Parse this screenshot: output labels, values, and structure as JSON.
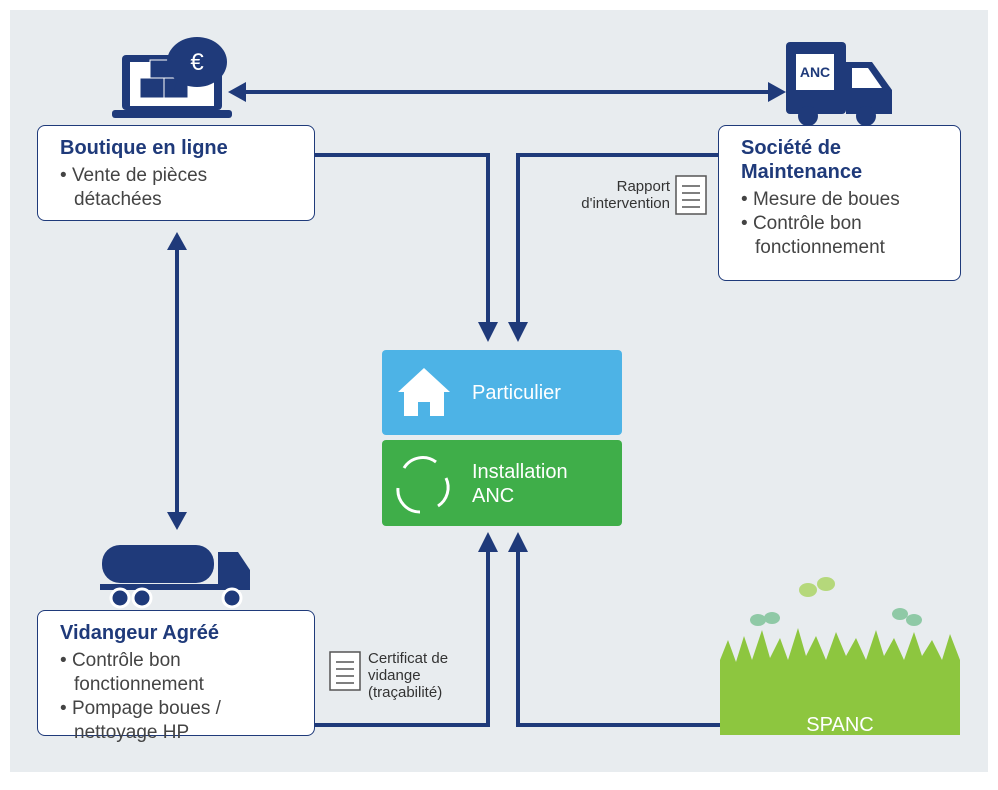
{
  "nodes": [
    {
      "title": "Boutique en ligne",
      "bullets": [
        "Vente de pièces détachées"
      ]
    },
    {
      "title": "Société de Maintenance",
      "bullets": [
        "Mesure de boues",
        "Contrôle bon fonctionnement"
      ]
    },
    {
      "title": "Vidangeur Agréé",
      "bullets": [
        "Contrôle bon fonctionnement",
        "Pompage boues / nettoyage HP"
      ]
    },
    {
      "title": "Particulier"
    },
    {
      "title": "Installation ANC"
    },
    {
      "title": "SPANC"
    }
  ],
  "labels": {
    "report": "Rapport d'intervention",
    "certificate": "Certificat de vidange (traçabilité)",
    "truck_badge": "ANC",
    "currency": "€"
  }
}
